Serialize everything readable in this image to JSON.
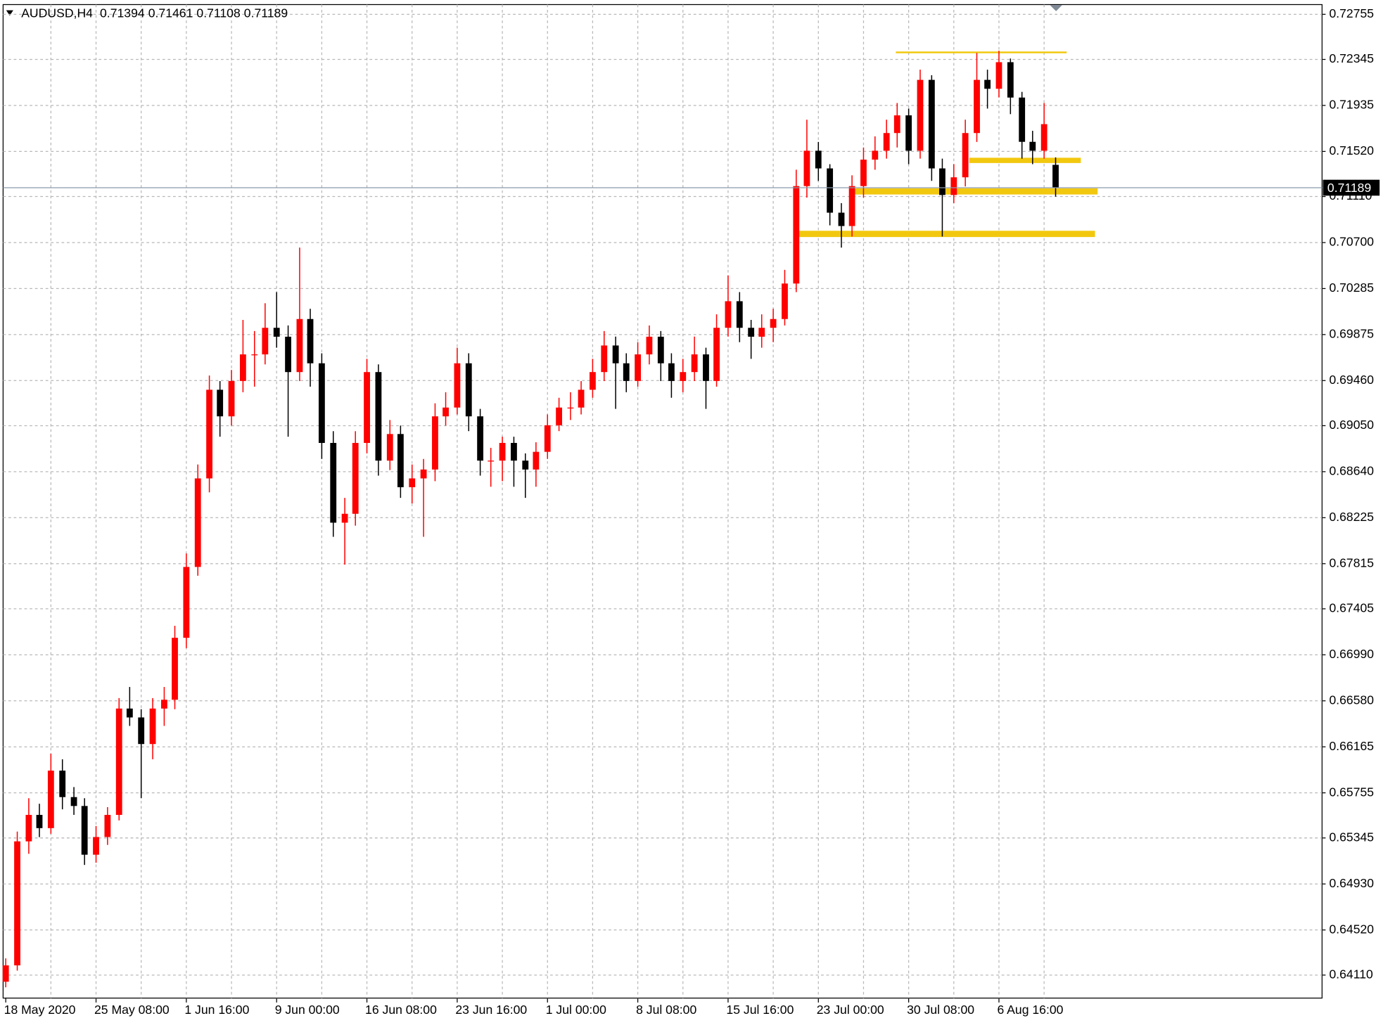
{
  "chart_data": {
    "type": "candlestick",
    "symbol": "AUDUSD,H4",
    "categories": [
      "18 May 2020",
      null,
      null,
      null,
      null,
      null,
      null,
      null,
      "25 May 08:00",
      null,
      null,
      null,
      null,
      null,
      null,
      null,
      "1 Jun 16:00",
      null,
      null,
      null,
      null,
      null,
      null,
      null,
      "9 Jun 00:00",
      null,
      null,
      null,
      null,
      null,
      null,
      null,
      "16 Jun 08:00",
      null,
      null,
      null,
      null,
      null,
      null,
      null,
      "23 Jun 16:00",
      null,
      null,
      null,
      null,
      null,
      null,
      null,
      "1 Jul 00:00",
      null,
      null,
      null,
      null,
      null,
      null,
      null,
      "8 Jul 08:00",
      null,
      null,
      null,
      null,
      null,
      null,
      null,
      "15 Jul 16:00",
      null,
      null,
      null,
      null,
      null,
      null,
      null,
      "23 Jul 00:00",
      null,
      null,
      null,
      null,
      null,
      null,
      null,
      "30 Jul 08:00",
      null,
      null,
      null,
      null,
      null,
      null,
      null,
      "6 Aug 16:00",
      null,
      null,
      null,
      null,
      null
    ],
    "candles": [
      [
        0.6405,
        0.6426,
        0.64,
        0.64197
      ],
      [
        0.64197,
        0.654,
        0.6415,
        0.65312
      ],
      [
        0.65312,
        0.657,
        0.652,
        0.6555
      ],
      [
        0.6555,
        0.6565,
        0.6535,
        0.65431
      ],
      [
        0.65431,
        0.661,
        0.6538,
        0.65948
      ],
      [
        0.65948,
        0.6605,
        0.656,
        0.6571
      ],
      [
        0.6571,
        0.658,
        0.6555,
        0.6563
      ],
      [
        0.6563,
        0.657,
        0.651,
        0.65192
      ],
      [
        0.65192,
        0.6545,
        0.6512,
        0.65351
      ],
      [
        0.65351,
        0.6562,
        0.6528,
        0.6555
      ],
      [
        0.6555,
        0.666,
        0.655,
        0.66506
      ],
      [
        0.66506,
        0.667,
        0.6635,
        0.66426
      ],
      [
        0.66426,
        0.665,
        0.657,
        0.66187
      ],
      [
        0.66187,
        0.666,
        0.6605,
        0.66506
      ],
      [
        0.66506,
        0.667,
        0.6635,
        0.66585
      ],
      [
        0.66585,
        0.6725,
        0.665,
        0.67142
      ],
      [
        0.67142,
        0.679,
        0.6705,
        0.67779
      ],
      [
        0.67779,
        0.687,
        0.677,
        0.68575
      ],
      [
        0.68575,
        0.695,
        0.6845,
        0.69372
      ],
      [
        0.69372,
        0.6945,
        0.6895,
        0.69133
      ],
      [
        0.69133,
        0.6955,
        0.6905,
        0.69451
      ],
      [
        0.69451,
        0.7,
        0.6935,
        0.6969
      ],
      [
        0.6969,
        0.699,
        0.694,
        0.6969
      ],
      [
        0.6969,
        0.7015,
        0.696,
        0.69929
      ],
      [
        0.69929,
        0.7025,
        0.6975,
        0.69849
      ],
      [
        0.69849,
        0.6995,
        0.6895,
        0.69531
      ],
      [
        0.69531,
        0.7065,
        0.6945,
        0.70008
      ],
      [
        0.70008,
        0.701,
        0.694,
        0.6961
      ],
      [
        0.6961,
        0.697,
        0.6875,
        0.68894
      ],
      [
        0.68894,
        0.69,
        0.6805,
        0.68177
      ],
      [
        0.68177,
        0.684,
        0.678,
        0.68257
      ],
      [
        0.68257,
        0.69,
        0.6815,
        0.68894
      ],
      [
        0.68894,
        0.6965,
        0.688,
        0.69531
      ],
      [
        0.69531,
        0.696,
        0.686,
        0.68735
      ],
      [
        0.68735,
        0.691,
        0.6865,
        0.68974
      ],
      [
        0.68974,
        0.6905,
        0.684,
        0.68496
      ],
      [
        0.68496,
        0.687,
        0.6835,
        0.68575
      ],
      [
        0.68575,
        0.6875,
        0.6805,
        0.68655
      ],
      [
        0.68655,
        0.6925,
        0.6855,
        0.69133
      ],
      [
        0.69133,
        0.6935,
        0.6905,
        0.69212
      ],
      [
        0.69212,
        0.6975,
        0.6915,
        0.6961
      ],
      [
        0.6961,
        0.697,
        0.69,
        0.69133
      ],
      [
        0.69133,
        0.692,
        0.686,
        0.68735
      ],
      [
        0.68735,
        0.6885,
        0.685,
        0.68735
      ],
      [
        0.68735,
        0.6895,
        0.6855,
        0.68894
      ],
      [
        0.68894,
        0.6895,
        0.685,
        0.68735
      ],
      [
        0.68735,
        0.688,
        0.684,
        0.68655
      ],
      [
        0.68655,
        0.689,
        0.685,
        0.68814
      ],
      [
        0.68814,
        0.6915,
        0.6875,
        0.69053
      ],
      [
        0.69053,
        0.693,
        0.69,
        0.69212
      ],
      [
        0.69212,
        0.6935,
        0.691,
        0.69212
      ],
      [
        0.69212,
        0.6945,
        0.6915,
        0.69372
      ],
      [
        0.69372,
        0.6965,
        0.693,
        0.69531
      ],
      [
        0.69531,
        0.699,
        0.6945,
        0.6977
      ],
      [
        0.6977,
        0.6985,
        0.692,
        0.6961
      ],
      [
        0.6961,
        0.697,
        0.6935,
        0.69451
      ],
      [
        0.69451,
        0.698,
        0.694,
        0.6969
      ],
      [
        0.6969,
        0.6995,
        0.696,
        0.69849
      ],
      [
        0.69849,
        0.699,
        0.6945,
        0.6961
      ],
      [
        0.6961,
        0.697,
        0.693,
        0.69451
      ],
      [
        0.69451,
        0.6965,
        0.6935,
        0.69531
      ],
      [
        0.69531,
        0.6985,
        0.6945,
        0.6969
      ],
      [
        0.6969,
        0.6975,
        0.692,
        0.69451
      ],
      [
        0.69451,
        0.7005,
        0.694,
        0.69929
      ],
      [
        0.69929,
        0.704,
        0.6985,
        0.70168
      ],
      [
        0.70168,
        0.7025,
        0.698,
        0.69929
      ],
      [
        0.69929,
        0.7,
        0.6965,
        0.69849
      ],
      [
        0.69849,
        0.7005,
        0.6975,
        0.69929
      ],
      [
        0.69929,
        0.701,
        0.698,
        0.70008
      ],
      [
        0.70008,
        0.7045,
        0.6995,
        0.70327
      ],
      [
        0.70327,
        0.7135,
        0.7025,
        0.71203
      ],
      [
        0.71203,
        0.718,
        0.711,
        0.71521
      ],
      [
        0.71521,
        0.716,
        0.7125,
        0.71362
      ],
      [
        0.71362,
        0.714,
        0.7085,
        0.70964
      ],
      [
        0.70964,
        0.7105,
        0.7065,
        0.70844
      ],
      [
        0.70844,
        0.713,
        0.7075,
        0.71203
      ],
      [
        0.71203,
        0.7155,
        0.711,
        0.71441
      ],
      [
        0.71441,
        0.7165,
        0.7135,
        0.71521
      ],
      [
        0.71521,
        0.718,
        0.7145,
        0.7168
      ],
      [
        0.7168,
        0.7195,
        0.7155,
        0.71839
      ],
      [
        0.71839,
        0.719,
        0.714,
        0.71521
      ],
      [
        0.71521,
        0.7225,
        0.7145,
        0.72158
      ],
      [
        0.72158,
        0.722,
        0.7125,
        0.71362
      ],
      [
        0.71362,
        0.7145,
        0.7075,
        0.71123
      ],
      [
        0.71123,
        0.714,
        0.7105,
        0.71282
      ],
      [
        0.71282,
        0.718,
        0.712,
        0.7168
      ],
      [
        0.7168,
        0.724,
        0.716,
        0.72158
      ],
      [
        0.72158,
        0.7225,
        0.719,
        0.72078
      ],
      [
        0.72078,
        0.7242,
        0.72,
        0.72317
      ],
      [
        0.72317,
        0.7235,
        0.7185,
        0.71999
      ],
      [
        0.71999,
        0.7205,
        0.7145,
        0.71601
      ],
      [
        0.71601,
        0.717,
        0.714,
        0.71521
      ],
      [
        0.71521,
        0.7195,
        0.7145,
        0.7176
      ],
      [
        0.71394,
        0.71461,
        0.71108,
        0.71189
      ]
    ],
    "up_color": "#ff0000",
    "down_color": "#000000",
    "ylim": [
      0.63903,
      0.72835
    ],
    "yticks": [
      0.72755,
      0.72345,
      0.71935,
      {
        "value": 0.7152,
        "label": "0.71520"
      },
      {
        "value": 0.7111,
        "label": "0.71110"
      },
      {
        "value": 0.707,
        "label": "0.70700"
      },
      0.70285,
      0.69875,
      {
        "value": 0.6946,
        "label": "0.69460"
      },
      {
        "value": 0.6905,
        "label": "0.69050"
      },
      {
        "value": 0.6864,
        "label": "0.68640"
      },
      0.68225,
      0.67815,
      0.67405,
      {
        "value": 0.6699,
        "label": "0.66990"
      },
      {
        "value": 0.6658,
        "label": "0.66580"
      },
      0.66165,
      0.65755,
      0.65345,
      {
        "value": 0.6493,
        "label": "0.64930"
      },
      {
        "value": 0.6452,
        "label": "0.64520"
      },
      {
        "value": 0.6411,
        "label": "0.64110"
      }
    ],
    "grid": true,
    "levels": [
      {
        "price": 0.72405,
        "color": "#f2c80f",
        "width": 2
      },
      {
        "price": 0.71434,
        "color": "#f2c80f",
        "width": 6
      },
      {
        "price": 0.71155,
        "color": "#f2c80f",
        "width": 7
      },
      {
        "price": 0.70773,
        "color": "#f2c80f",
        "width": 7
      }
    ],
    "price_line_color": "#8a9aaa"
  }
}
